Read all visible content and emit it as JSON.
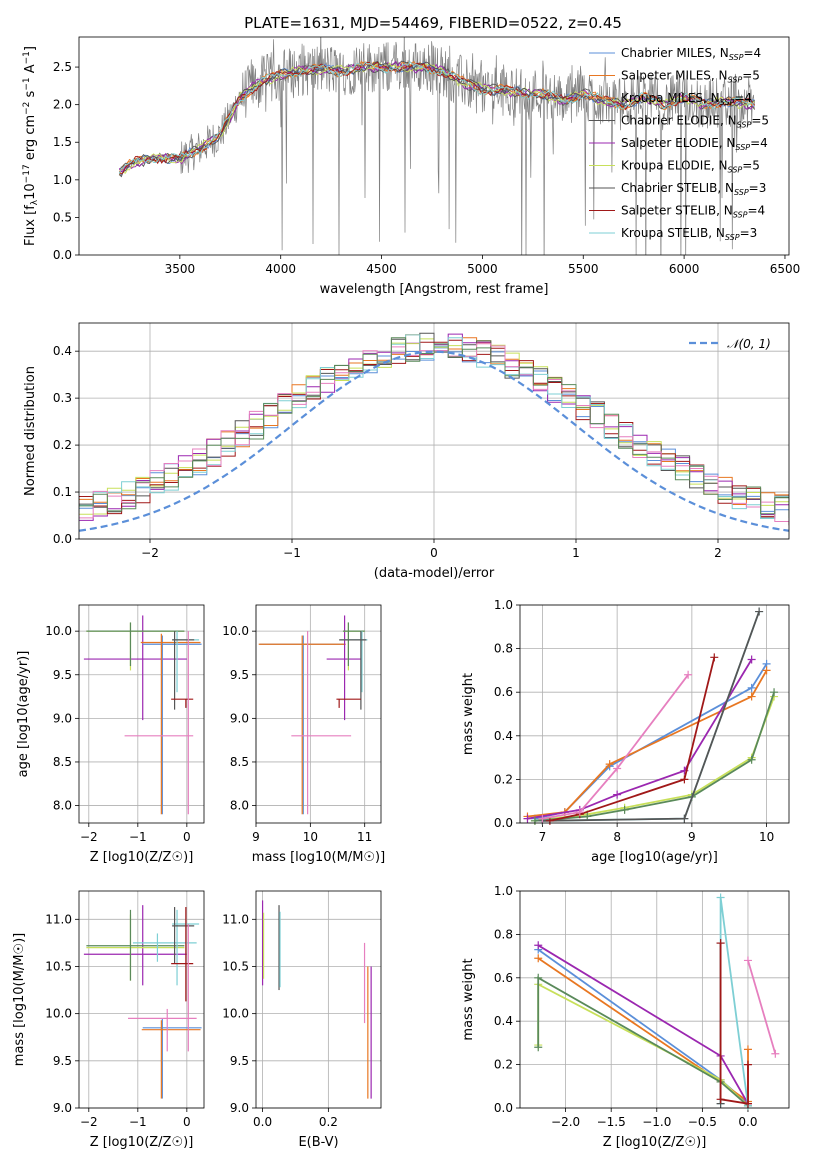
{
  "title": "PLATE=1631, MJD=54469, FIBERID=0522, z=0.45",
  "colors": {
    "Chabrier MILES": "#5b8fd9",
    "Salpeter MILES": "#9b27b0",
    "Kroupa MILES": "#e87722",
    "Chabrier ELODIE": "#555555",
    "Salpeter ELODIE": "#9b27b0",
    "Kroupa ELODIE": "#c8e05a",
    "Chabrier STELIB": "#555555",
    "Salpeter STELIB": "#a01818",
    "Kroupa STELIB": "#7ecfd4",
    "pink": "#e67fbf",
    "green": "#5a8a5a",
    "gauss": "#5b8fd9",
    "grid": "#b0b0b0",
    "spec": "#808080"
  },
  "chart_data": [
    {
      "id": "spectrum",
      "type": "line",
      "title": "PLATE=1631, MJD=54469, FIBERID=0522, z=0.45",
      "xlabel": "wavelength [Angstrom, rest frame]",
      "ylabel": "Flux [f_λ10^-17 erg cm^-2 s^-1 A^-1]",
      "xlim": [
        3000,
        6520
      ],
      "ylim": [
        0,
        2.9
      ],
      "xticks": [
        "3500",
        "4000",
        "4500",
        "5000",
        "5500",
        "6000",
        "6500"
      ],
      "yticks": [
        "0.0",
        "0.5",
        "1.0",
        "1.5",
        "2.0",
        "2.5"
      ],
      "legend": [
        {
          "name": "Chabrier MILES, N_SSP=4",
          "color": "#5b8fd9"
        },
        {
          "name": "Salpeter MILES, N_SSP=5",
          "color": "#e87722"
        },
        {
          "name": "Kroupa MILES, N_SSP=4",
          "color": "#e87722"
        },
        {
          "name": "Chabrier ELODIE, N_SSP=5",
          "color": "#555555"
        },
        {
          "name": "Salpeter ELODIE, N_SSP=4",
          "color": "#9b27b0"
        },
        {
          "name": "Kroupa ELODIE, N_SSP=5",
          "color": "#c8e05a"
        },
        {
          "name": "Chabrier STELIB, N_SSP=3",
          "color": "#555555"
        },
        {
          "name": "Salpeter STELIB, N_SSP=4",
          "color": "#a01818"
        },
        {
          "name": "Kroupa STELIB, N_SSP=3",
          "color": "#7ecfd4"
        }
      ],
      "continuum": {
        "x": [
          3200,
          3250,
          3300,
          3400,
          3500,
          3600,
          3700,
          3800,
          3900,
          4000,
          4100,
          4200,
          4300,
          4400,
          4500,
          4600,
          4700,
          4800,
          4900,
          5000,
          5100,
          5200,
          5300,
          5400,
          5500,
          5600,
          5700,
          5800,
          5900,
          6000,
          6100,
          6200,
          6350
        ],
        "y": [
          1.1,
          1.2,
          1.25,
          1.3,
          1.28,
          1.42,
          1.6,
          2.1,
          2.3,
          2.4,
          2.45,
          2.47,
          2.45,
          2.5,
          2.5,
          2.5,
          2.5,
          2.45,
          2.3,
          2.2,
          2.2,
          2.15,
          2.15,
          2.05,
          2.15,
          2.05,
          2.0,
          2.1,
          2.0,
          2.1,
          2.0,
          2.05,
          2.0
        ]
      },
      "grid": false
    },
    {
      "id": "residuals",
      "type": "histogram",
      "xlabel": "(data-model)/error",
      "ylabel": "Normed distribution",
      "xlim": [
        -2.5,
        2.5
      ],
      "ylim": [
        0,
        0.46
      ],
      "xticks": [
        "−2",
        "−1",
        "0",
        "1",
        "2"
      ],
      "yticks": [
        "0.0",
        "0.1",
        "0.2",
        "0.3",
        "0.4"
      ],
      "legend": [
        {
          "name": "𝒩(0, 1)",
          "color": "#5b8fd9",
          "style": "dashed"
        }
      ],
      "bin_width": 0.1,
      "grid": true
    },
    {
      "id": "age_vs_Z",
      "type": "errorbar",
      "xlabel": "Z [log10(Z/Z☉)]",
      "ylabel": "age  [log10(age/yr)]",
      "xlim": [
        -2.2,
        0.35
      ],
      "ylim": [
        7.8,
        10.3
      ],
      "xticks": [
        "−2",
        "−1",
        "0"
      ],
      "yticks": [
        "8.0",
        "8.5",
        "9.0",
        "9.5",
        "10.0"
      ],
      "points": [
        {
          "x": -0.9,
          "y": 9.68,
          "xerr": [
            1.2,
            0.9
          ],
          "yerr": [
            0.7,
            0.5
          ],
          "color": "#9b27b0"
        },
        {
          "x": -0.5,
          "y": 9.85,
          "xerr": [
            0.4,
            0.8
          ],
          "yerr": [
            1.95,
            0.1
          ],
          "color": "#5b8fd9"
        },
        {
          "x": -0.52,
          "y": 9.87,
          "xerr": [
            0.42,
            0.8
          ],
          "yerr": [
            1.97,
            0.1
          ],
          "color": "#e87722"
        },
        {
          "x": -1.15,
          "y": 10.0,
          "xerr": [
            0.9,
            1.1
          ],
          "yerr": [
            0.45,
            0.1
          ],
          "color": "#c8e05a"
        },
        {
          "x": -1.15,
          "y": 10.0,
          "xerr": [
            0.9,
            1.1
          ],
          "yerr": [
            0.4,
            0.1
          ],
          "color": "#5a8a5a"
        },
        {
          "x": -0.2,
          "y": 9.9,
          "xerr": [
            0.1,
            0.45
          ],
          "yerr": [
            0.6,
            0.1
          ],
          "color": "#7ecfd4"
        },
        {
          "x": -0.25,
          "y": 9.9,
          "xerr": [
            0.05,
            0.4
          ],
          "yerr": [
            0.8,
            0.1
          ],
          "color": "#555555"
        },
        {
          "x": -0.02,
          "y": 9.22,
          "xerr": [
            0.3,
            0.15
          ],
          "yerr": [
            0.1,
            0.0
          ],
          "color": "#a01818"
        },
        {
          "x": 0.03,
          "y": 8.8,
          "xerr": [
            1.3,
            0.1
          ],
          "yerr": [
            0.9,
            1.2
          ],
          "color": "#e67fbf"
        }
      ],
      "grid": true
    },
    {
      "id": "age_vs_mass",
      "type": "errorbar",
      "xlabel": "mass [log10(M/M☉)]",
      "ylabel": "",
      "xlim": [
        9.0,
        11.3
      ],
      "ylim": [
        7.8,
        10.3
      ],
      "xticks": [
        "9",
        "10",
        "11"
      ],
      "yticks": [
        "8.0",
        "8.5",
        "9.0",
        "9.5",
        "10.0"
      ],
      "points": [
        {
          "x": 9.87,
          "y": 9.85,
          "xerr": [
            0.8,
            0.75
          ],
          "yerr": [
            1.95,
            0.1
          ],
          "color": "#5b8fd9"
        },
        {
          "x": 9.85,
          "y": 9.85,
          "xerr": [
            0.8,
            0.8
          ],
          "yerr": [
            1.95,
            0.1
          ],
          "color": "#e87722"
        },
        {
          "x": 10.63,
          "y": 9.68,
          "xerr": [
            0.33,
            0.3
          ],
          "yerr": [
            0.7,
            0.5
          ],
          "color": "#9b27b0"
        },
        {
          "x": 10.7,
          "y": 10.0,
          "xerr": [
            0.1,
            0.3
          ],
          "yerr": [
            0.45,
            0.1
          ],
          "color": "#c8e05a"
        },
        {
          "x": 10.7,
          "y": 10.0,
          "xerr": [
            0.1,
            0.3
          ],
          "yerr": [
            0.4,
            0.1
          ],
          "color": "#5a8a5a"
        },
        {
          "x": 10.95,
          "y": 9.9,
          "xerr": [
            0.4,
            0.1
          ],
          "yerr": [
            0.6,
            0.1
          ],
          "color": "#7ecfd4"
        },
        {
          "x": 10.93,
          "y": 9.9,
          "xerr": [
            0.4,
            0.1
          ],
          "yerr": [
            0.8,
            0.1
          ],
          "color": "#555555"
        },
        {
          "x": 10.53,
          "y": 9.22,
          "xerr": [
            0.05,
            0.4
          ],
          "yerr": [
            0.1,
            0.0
          ],
          "color": "#a01818"
        },
        {
          "x": 9.95,
          "y": 8.8,
          "xerr": [
            0.3,
            0.8
          ],
          "yerr": [
            0.9,
            1.2
          ],
          "color": "#e67fbf"
        }
      ],
      "grid": true
    },
    {
      "id": "massweight_vs_age",
      "type": "line",
      "xlabel": "age  [log10(age/yr)]",
      "ylabel": "mass weight",
      "xlim": [
        6.7,
        10.3
      ],
      "ylim": [
        0,
        1.0
      ],
      "xticks": [
        "7",
        "8",
        "9",
        "10"
      ],
      "yticks": [
        "0.0",
        "0.2",
        "0.4",
        "0.6",
        "0.8",
        "1.0"
      ],
      "series": [
        {
          "color": "#5b8fd9",
          "x": [
            6.9,
            7.3,
            7.9,
            9.8,
            10.0
          ],
          "y": [
            0.02,
            0.05,
            0.26,
            0.62,
            0.73
          ]
        },
        {
          "color": "#e87722",
          "x": [
            6.8,
            7.3,
            7.9,
            9.8,
            10.0
          ],
          "y": [
            0.03,
            0.05,
            0.27,
            0.58,
            0.7
          ]
        },
        {
          "color": "#9b27b0",
          "x": [
            6.8,
            7.5,
            8.0,
            8.9,
            9.8
          ],
          "y": [
            0.02,
            0.06,
            0.13,
            0.24,
            0.75
          ]
        },
        {
          "color": "#c8e05a",
          "x": [
            6.9,
            7.6,
            8.1,
            9.0,
            9.8,
            10.1
          ],
          "y": [
            0.01,
            0.04,
            0.07,
            0.13,
            0.3,
            0.58
          ]
        },
        {
          "color": "#5a8a5a",
          "x": [
            6.9,
            7.6,
            8.1,
            9.0,
            9.8,
            10.1
          ],
          "y": [
            0.01,
            0.03,
            0.06,
            0.12,
            0.29,
            0.6
          ]
        },
        {
          "color": "#7ecfd4",
          "x": [
            7.0,
            8.9,
            9.9
          ],
          "y": [
            0.01,
            0.02,
            0.97
          ]
        },
        {
          "color": "#555555",
          "x": [
            7.0,
            8.9,
            9.9
          ],
          "y": [
            0.01,
            0.02,
            0.97
          ]
        },
        {
          "color": "#a01818",
          "x": [
            7.1,
            7.5,
            8.9,
            9.3
          ],
          "y": [
            0.01,
            0.04,
            0.2,
            0.76
          ]
        },
        {
          "color": "#e67fbf",
          "x": [
            7.0,
            7.5,
            8.0,
            8.95
          ],
          "y": [
            0.02,
            0.05,
            0.25,
            0.68
          ]
        }
      ],
      "grid": true
    },
    {
      "id": "mass_vs_Z",
      "type": "errorbar",
      "xlabel": "Z [log10(Z/Z☉)]",
      "ylabel": "mass [log10(M/M☉)]",
      "xlim": [
        -2.2,
        0.35
      ],
      "ylim": [
        9.0,
        11.3
      ],
      "xticks": [
        "−2",
        "−1",
        "0"
      ],
      "yticks": [
        "9.0",
        "9.5",
        "10.0",
        "10.5",
        "11.0"
      ],
      "points": [
        {
          "x": -0.9,
          "y": 10.63,
          "xerr": [
            1.2,
            0.9
          ],
          "yerr": [
            0.33,
            0.52
          ],
          "color": "#9b27b0"
        },
        {
          "x": -1.15,
          "y": 10.7,
          "xerr": [
            0.9,
            1.1
          ],
          "yerr": [
            0.35,
            0.35
          ],
          "color": "#c8e05a"
        },
        {
          "x": -1.15,
          "y": 10.72,
          "xerr": [
            0.9,
            1.1
          ],
          "yerr": [
            0.37,
            0.38
          ],
          "color": "#5a8a5a"
        },
        {
          "x": -0.6,
          "y": 10.75,
          "xerr": [
            0.5,
            0.8
          ],
          "yerr": [
            0.2,
            0.1
          ],
          "color": "#7ecfd4"
        },
        {
          "x": -0.2,
          "y": 10.95,
          "xerr": [
            0.1,
            0.45
          ],
          "yerr": [
            0.65,
            0.15
          ],
          "color": "#7ecfd4"
        },
        {
          "x": -0.25,
          "y": 10.93,
          "xerr": [
            0.05,
            0.4
          ],
          "yerr": [
            0.4,
            0.2
          ],
          "color": "#555555"
        },
        {
          "x": -0.02,
          "y": 10.53,
          "xerr": [
            0.3,
            0.15
          ],
          "yerr": [
            0.4,
            0.6
          ],
          "color": "#a01818"
        },
        {
          "x": -0.5,
          "y": 9.85,
          "xerr": [
            0.4,
            0.8
          ],
          "yerr": [
            0.75,
            0.1
          ],
          "color": "#5b8fd9"
        },
        {
          "x": -0.52,
          "y": 9.83,
          "xerr": [
            0.4,
            0.8
          ],
          "yerr": [
            0.73,
            0.1
          ],
          "color": "#e87722"
        },
        {
          "x": -0.4,
          "y": 9.95,
          "xerr": [
            0.8,
            0.6
          ],
          "yerr": [
            0.35,
            0.1
          ],
          "color": "#e67fbf"
        },
        {
          "x": 0.03,
          "y": 10.25,
          "xerr": [
            0.0,
            0.0
          ],
          "yerr": [
            0.65,
            0.7
          ],
          "color": "#e67fbf"
        }
      ],
      "grid": true
    },
    {
      "id": "mass_vs_EBV",
      "type": "errorbar",
      "xlabel": "E(B-V)",
      "ylabel": "",
      "xlim": [
        -0.02,
        0.36
      ],
      "ylim": [
        9.0,
        11.3
      ],
      "xticks": [
        "0.0",
        "0.2"
      ],
      "yticks": [
        "9.0",
        "9.5",
        "10.0",
        "10.5",
        "11.0"
      ],
      "points": [
        {
          "x": 0.0,
          "y": 10.75,
          "xerr": [
            0,
            0
          ],
          "yerr": [
            0.45,
            0.45
          ],
          "color": "#9b27b0"
        },
        {
          "x": 0.003,
          "y": 10.72,
          "xerr": [
            0,
            0
          ],
          "yerr": [
            0.35,
            0.35
          ],
          "color": "#c8e05a"
        },
        {
          "x": 0.05,
          "y": 10.7,
          "xerr": [
            0,
            0
          ],
          "yerr": [
            0.45,
            0.45
          ],
          "color": "#555555"
        },
        {
          "x": 0.053,
          "y": 10.68,
          "xerr": [
            0,
            0
          ],
          "yerr": [
            0.4,
            0.4
          ],
          "color": "#7ecfd4"
        },
        {
          "x": 0.32,
          "y": 10.3,
          "xerr": [
            0,
            0
          ],
          "yerr": [
            1.2,
            0.2
          ],
          "color": "#e87722"
        },
        {
          "x": 0.33,
          "y": 10.0,
          "xerr": [
            0,
            0
          ],
          "yerr": [
            0.9,
            0.5
          ],
          "color": "#9b27b0"
        },
        {
          "x": 0.31,
          "y": 10.4,
          "xerr": [
            0,
            0
          ],
          "yerr": [
            0.5,
            0.35
          ],
          "color": "#e67fbf"
        }
      ],
      "grid": true
    },
    {
      "id": "massweight_vs_Z",
      "type": "line",
      "xlabel": "Z [log10(Z/Z☉)]",
      "ylabel": "mass weight",
      "xlim": [
        -2.5,
        0.45
      ],
      "ylim": [
        0,
        1.0
      ],
      "xticks": [
        "−2.0",
        "−1.5",
        "−1.0",
        "−0.5",
        "0.0"
      ],
      "yticks": [
        "0.0",
        "0.2",
        "0.4",
        "0.6",
        "0.8",
        "1.0"
      ],
      "series": [
        {
          "color": "#5b8fd9",
          "x": [
            -2.3,
            -0.3,
            0.0
          ],
          "y": [
            0.73,
            0.13,
            0.02
          ]
        },
        {
          "color": "#e87722",
          "x": [
            -2.3,
            -0.3,
            0.0,
            0.0
          ],
          "y": [
            0.69,
            0.12,
            0.03,
            0.27
          ]
        },
        {
          "color": "#9b27b0",
          "x": [
            -2.3,
            -0.3,
            0.0
          ],
          "y": [
            0.75,
            0.24,
            0.02
          ]
        },
        {
          "color": "#c8e05a",
          "x": [
            -2.3,
            -2.3,
            -0.3,
            0.0
          ],
          "y": [
            0.29,
            0.57,
            0.13,
            0.01
          ]
        },
        {
          "color": "#5a8a5a",
          "x": [
            -2.3,
            -2.3,
            -0.3,
            0.0
          ],
          "y": [
            0.28,
            0.6,
            0.12,
            0.01
          ]
        },
        {
          "color": "#7ecfd4",
          "x": [
            -0.3,
            -0.3,
            0.0
          ],
          "y": [
            0.02,
            0.97,
            0.01
          ]
        },
        {
          "color": "#555555",
          "x": [
            -0.3,
            -0.3
          ],
          "y": [
            0.02,
            0.76
          ]
        },
        {
          "color": "#a01818",
          "x": [
            -0.3,
            -0.3,
            0.0,
            0.0
          ],
          "y": [
            0.76,
            0.04,
            0.02,
            0.2
          ]
        },
        {
          "color": "#e67fbf",
          "x": [
            0.0,
            0.3
          ],
          "y": [
            0.68,
            0.25
          ]
        }
      ],
      "grid": true
    }
  ]
}
